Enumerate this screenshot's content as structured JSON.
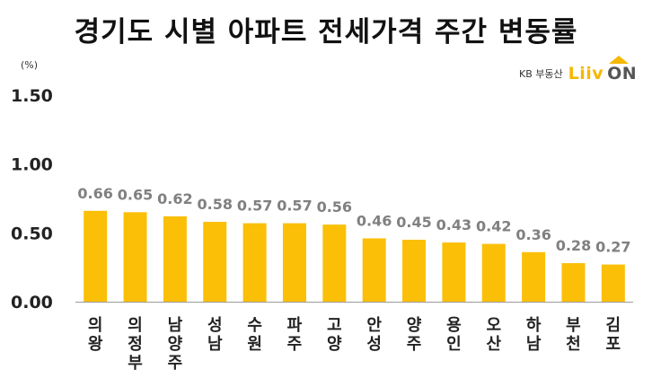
{
  "title": "경기도 시별 아파트 전세가격 주간 변동률",
  "unit": "(%)",
  "brand": {
    "text": "KB 부동산",
    "logo_part1": "Liiv",
    "logo_part2": "ON",
    "accent": "#f6b800"
  },
  "chart_data": {
    "type": "bar",
    "title": "경기도 시별 아파트 전세가격 주간 변동률",
    "ylabel": "(%)",
    "ylim": [
      0,
      1.5
    ],
    "yticks": [
      "0.00",
      "0.50",
      "1.00",
      "1.50"
    ],
    "categories": [
      "의왕",
      "의정부",
      "남양주",
      "성남",
      "수원",
      "파주",
      "고양",
      "안성",
      "양주",
      "용인",
      "오산",
      "하남",
      "부천",
      "김포"
    ],
    "values": [
      0.66,
      0.65,
      0.62,
      0.58,
      0.57,
      0.57,
      0.56,
      0.46,
      0.45,
      0.43,
      0.42,
      0.36,
      0.28,
      0.27
    ],
    "value_labels": [
      "0.66",
      "0.65",
      "0.62",
      "0.58",
      "0.57",
      "0.57",
      "0.56",
      "0.46",
      "0.45",
      "0.43",
      "0.42",
      "0.36",
      "0.28",
      "0.27"
    ],
    "bar_color": "#fbbf07",
    "grid": false,
    "legend": "none"
  }
}
